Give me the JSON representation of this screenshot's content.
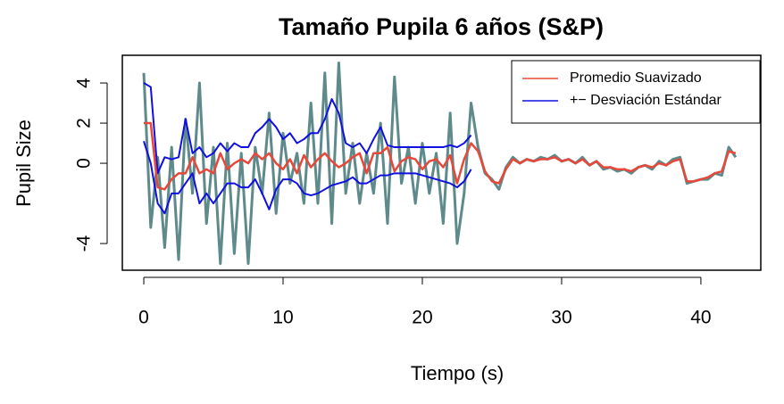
{
  "chart_data": {
    "type": "line",
    "title": "Tamaño Pupila 6 años (S&P)",
    "x_label": "Tiempo (s)",
    "y_label": "Pupil Size",
    "xlim": [
      -1.54,
      44.3
    ],
    "ylim": [
      -5.33,
      5.38
    ],
    "xticks": [
      0,
      10,
      20,
      30,
      40
    ],
    "yticks": [
      -4,
      0,
      2,
      4
    ],
    "legend": "top-right",
    "x": [
      0,
      0.5,
      1,
      1.5,
      2,
      2.5,
      3,
      3.5,
      4,
      4.5,
      5,
      5.5,
      6,
      6.5,
      7,
      7.5,
      8,
      8.5,
      9,
      9.5,
      10,
      10.5,
      11,
      11.5,
      12,
      12.5,
      13,
      13.5,
      14,
      14.5,
      15,
      15.5,
      16,
      16.5,
      17,
      17.5,
      18,
      18.5,
      19,
      19.5,
      20,
      20.5,
      21,
      21.5,
      22,
      22.5,
      23,
      23.5,
      24,
      24.5,
      25,
      25.5,
      26,
      26.5,
      27,
      27.5,
      28,
      28.5,
      29,
      29.5,
      30,
      30.5,
      31,
      31.5,
      32,
      32.5,
      33,
      33.5,
      34,
      34.5,
      35,
      35.5,
      36,
      36.5,
      37,
      37.5,
      38,
      38.5,
      39,
      39.5,
      40,
      40.5,
      41,
      41.5,
      42,
      42.5
    ],
    "series": [
      {
        "color": "#5f8a8b",
        "width": 3,
        "values": [
          4.5,
          -3.2,
          0.3,
          -4.2,
          0.8,
          -4.8,
          2.2,
          -1.5,
          4.0,
          -3.0,
          0.8,
          -5.0,
          1.0,
          -4.5,
          0.5,
          -5.0,
          0.8,
          -1.5,
          2.5,
          -2.5,
          1.5,
          -1.0,
          0.5,
          -2.0,
          3.0,
          -2.0,
          4.5,
          -3.0,
          5.0,
          -1.5,
          1.0,
          -2.0,
          0.5,
          -1.5,
          2.0,
          -3.0,
          4.3,
          -1.0,
          0.8,
          -2.0,
          1.0,
          -1.5,
          0.5,
          -3.0,
          2.5,
          -4.0,
          -1.5,
          3.0,
          0.8,
          -0.5,
          -0.8,
          -1.3,
          -0.2,
          0.3,
          0,
          0.2,
          0.1,
          0.3,
          0.2,
          0.4,
          0.1,
          0.2,
          0,
          0.3,
          -0.1,
          0.1,
          -0.3,
          -0.2,
          -0.4,
          -0.3,
          -0.5,
          -0.2,
          -0.1,
          -0.3,
          0.1,
          -0.1,
          0.2,
          0.3,
          -1.0,
          -0.9,
          -0.8,
          -0.8,
          -0.5,
          -0.6,
          0.8,
          0.3
        ]
      },
      {
        "name": "+− Desviación Estándar",
        "color": "#1010e0",
        "width": 2,
        "values": [
          4.0,
          3.8,
          -0.5,
          0.3,
          0.2,
          0.3,
          2.2,
          0.5,
          0.8,
          0.3,
          0.5,
          1.0,
          0.6,
          1.0,
          0.8,
          0.8,
          1.5,
          1.8,
          2.2,
          1.8,
          1.2,
          1.5,
          1.0,
          1.2,
          1.5,
          1.5,
          2.2,
          3.2,
          2.5,
          1.0,
          0.8,
          1.0,
          0.5,
          1.2,
          1.8,
          0.9,
          0.8,
          0.8,
          0.8,
          0.8,
          0.8,
          0.8,
          0.8,
          0.8,
          0.9,
          0.8,
          1.0,
          1.4,
          null,
          null,
          null,
          null,
          null,
          null,
          null,
          null,
          null,
          null,
          null,
          null,
          null,
          null,
          null,
          null,
          null,
          null,
          null,
          null,
          null,
          null,
          null,
          null,
          null,
          null,
          null,
          null,
          null,
          null,
          null,
          null,
          null,
          null,
          null,
          null,
          null,
          null
        ]
      },
      {
        "color": "#1010e0",
        "width": 2,
        "values": [
          1.1,
          0,
          -2.0,
          -2.5,
          -1.5,
          -1.5,
          -1.0,
          -0.5,
          -2.0,
          -1.5,
          -2.0,
          -1.5,
          -1.0,
          -1.0,
          -1.2,
          -1.2,
          -0.8,
          -1.5,
          -2.3,
          -1.3,
          -0.8,
          -0.8,
          -1.0,
          -1.5,
          -1.6,
          -1.5,
          -1.3,
          -1.1,
          -1.0,
          -0.9,
          -0.7,
          -1.0,
          -1.0,
          -0.8,
          -0.6,
          -0.6,
          -0.5,
          -0.5,
          -0.5,
          -0.5,
          -0.6,
          -0.7,
          -0.8,
          -0.9,
          -1.0,
          -1.2,
          -0.9,
          -0.3,
          null,
          null,
          null,
          null,
          null,
          null,
          null,
          null,
          null,
          null,
          null,
          null,
          null,
          null,
          null,
          null,
          null,
          null,
          null,
          null,
          null,
          null,
          null,
          null,
          null,
          null,
          null,
          null,
          null,
          null,
          null,
          null,
          null,
          null,
          null,
          null,
          null,
          null
        ]
      },
      {
        "name": "Promedio Suavizado",
        "color": "#e8483a",
        "width": 2.5,
        "values": [
          2.0,
          2.0,
          -1.2,
          -1.3,
          -0.8,
          -0.5,
          -0.5,
          0.3,
          -0.5,
          -0.3,
          -0.5,
          0.5,
          -0.3,
          0,
          0.2,
          0,
          0.5,
          0.2,
          0.5,
          0,
          -0.3,
          0.2,
          -0.5,
          0.4,
          -0.2,
          0.2,
          0.5,
          0.1,
          -0.2,
          0,
          0.3,
          0.5,
          -0.5,
          0.5,
          0.5,
          0.8,
          -0.4,
          0.1,
          0.3,
          0.2,
          -0.3,
          0.1,
          0.2,
          -0.2,
          0.4,
          -1.0,
          0.2,
          1.0,
          0.6,
          -0.4,
          -0.9,
          -1.0,
          -0.3,
          0.2,
          0,
          0.2,
          0.1,
          0.2,
          0.2,
          0.3,
          0.1,
          0.2,
          0,
          0.2,
          -0.1,
          0.1,
          -0.2,
          -0.2,
          -0.3,
          -0.3,
          -0.4,
          -0.2,
          -0.1,
          -0.2,
          0,
          -0.1,
          0.1,
          0.2,
          -0.9,
          -0.9,
          -0.8,
          -0.7,
          -0.5,
          -0.4,
          0.6,
          0.5
        ]
      }
    ]
  }
}
